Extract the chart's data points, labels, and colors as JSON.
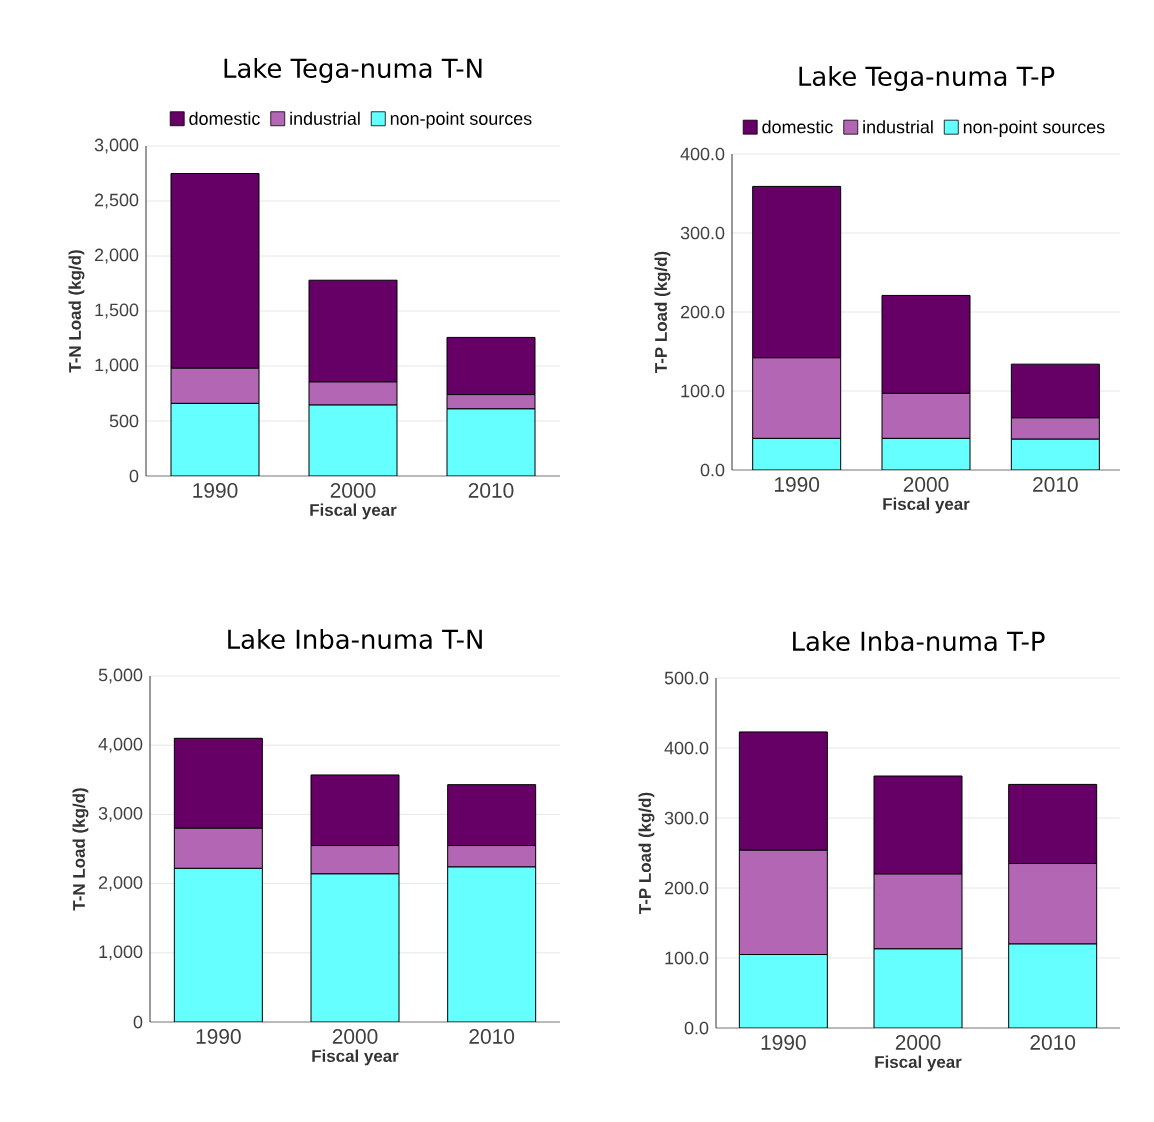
{
  "chart_data": [
    {
      "type": "bar",
      "stacked": true,
      "title": "Lake  Tega-numa  T-N",
      "xlabel": "Fiscal year",
      "ylabel": "T-N Load (kg/d)",
      "categories": [
        "1990",
        "2000",
        "2010"
      ],
      "ylim": [
        0,
        3000
      ],
      "yticks": [
        0,
        500,
        {
          "value": 1000,
          "label": "1,000"
        },
        {
          "value": 1500,
          "label": "1,500"
        },
        {
          "value": 2000,
          "label": "2,000"
        },
        {
          "value": 2500,
          "label": "2,500"
        },
        {
          "value": 3000,
          "label": "3,000"
        }
      ],
      "grid": "y",
      "legend": "top",
      "series": [
        {
          "name": "non-point sources",
          "color": "#66ffff",
          "values": [
            660,
            645,
            610
          ]
        },
        {
          "name": "industrial",
          "color": "#b366b3",
          "values": [
            320,
            210,
            130
          ]
        },
        {
          "name": "domestic",
          "color": "#660066",
          "values": [
            1770,
            925,
            520
          ]
        }
      ]
    },
    {
      "type": "bar",
      "stacked": true,
      "title": "Lake  Tega-numa  T-P",
      "xlabel": "Fiscal year",
      "ylabel": "T-P Load (kg/d)",
      "categories": [
        "1990",
        "2000",
        "2010"
      ],
      "ylim": [
        0,
        400
      ],
      "yticks": [
        {
          "value": 0,
          "label": "0.0"
        },
        {
          "value": 100,
          "label": "100.0"
        },
        {
          "value": 200,
          "label": "200.0"
        },
        {
          "value": 300,
          "label": "300.0"
        },
        {
          "value": 400,
          "label": "400.0"
        }
      ],
      "grid": "y",
      "legend": "top",
      "series": [
        {
          "name": "non-point sources",
          "color": "#66ffff",
          "values": [
            40,
            40,
            39
          ]
        },
        {
          "name": "industrial",
          "color": "#b366b3",
          "values": [
            102,
            57,
            27
          ]
        },
        {
          "name": "domestic",
          "color": "#660066",
          "values": [
            217,
            124,
            68
          ]
        }
      ]
    },
    {
      "type": "bar",
      "stacked": true,
      "title": "Lake  Inba-numa  T-N",
      "xlabel": "Fiscal year",
      "ylabel": "T-N Load (kg/d)",
      "categories": [
        "1990",
        "2000",
        "2010"
      ],
      "ylim": [
        0,
        5000
      ],
      "yticks": [
        0,
        {
          "value": 1000,
          "label": "1,000"
        },
        {
          "value": 2000,
          "label": "2,000"
        },
        {
          "value": 3000,
          "label": "3,000"
        },
        {
          "value": 4000,
          "label": "4,000"
        },
        {
          "value": 5000,
          "label": "5,000"
        }
      ],
      "grid": "y",
      "series": [
        {
          "color": "#66ffff",
          "values": [
            2220,
            2140,
            2240
          ]
        },
        {
          "color": "#b366b3",
          "values": [
            580,
            410,
            310
          ]
        },
        {
          "color": "#660066",
          "values": [
            1300,
            1020,
            880
          ]
        }
      ]
    },
    {
      "type": "bar",
      "stacked": true,
      "title": "Lake  Inba-numa  T-P",
      "xlabel": "Fiscal year",
      "ylabel": "T-P Load (kg/d)",
      "categories": [
        "1990",
        "2000",
        "2010"
      ],
      "ylim": [
        0,
        500
      ],
      "yticks": [
        {
          "value": 0,
          "label": "0.0"
        },
        {
          "value": 100,
          "label": "100.0"
        },
        {
          "value": 200,
          "label": "200.0"
        },
        {
          "value": 300,
          "label": "300.0"
        },
        {
          "value": 400,
          "label": "400.0"
        },
        {
          "value": 500,
          "label": "500.0"
        }
      ],
      "grid": "y",
      "series": [
        {
          "color": "#66ffff",
          "values": [
            105,
            113,
            120
          ]
        },
        {
          "color": "#b366b3",
          "values": [
            149,
            107,
            115
          ]
        },
        {
          "color": "#660066",
          "values": [
            169,
            140,
            113
          ]
        }
      ]
    }
  ]
}
